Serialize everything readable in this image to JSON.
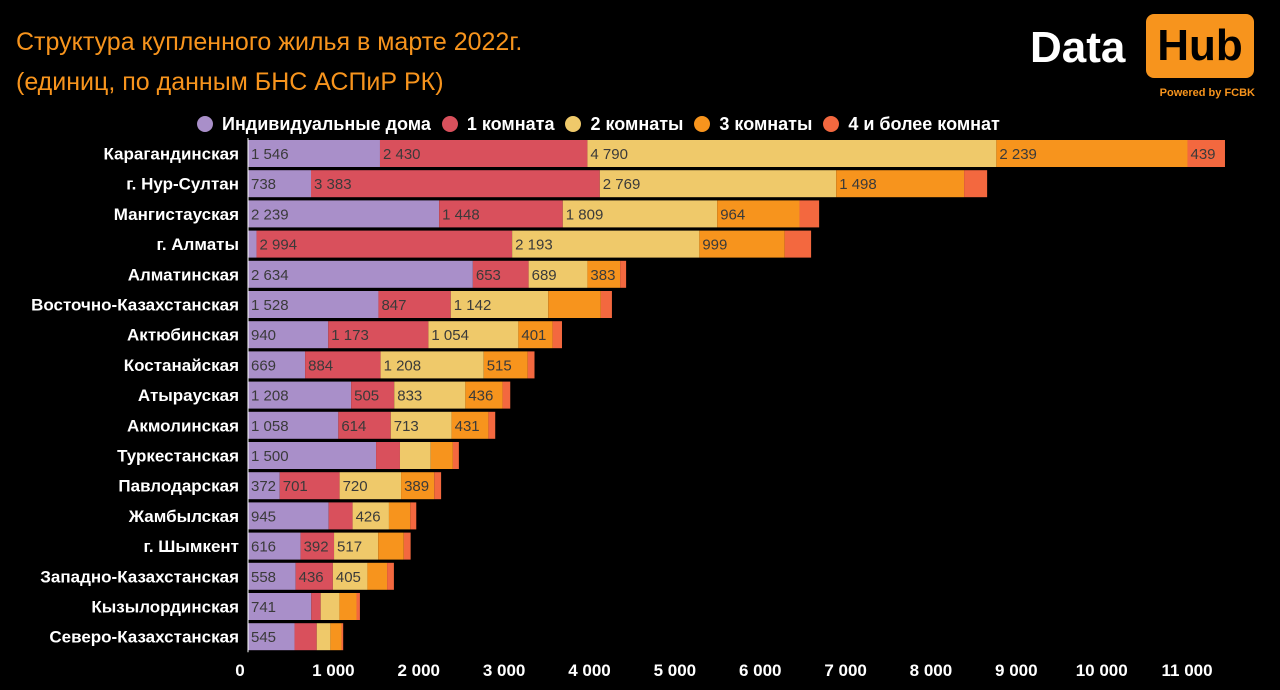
{
  "header": {
    "title_line1": "Структура купленного жилья в марте 2022г.",
    "title_line2": "(единиц, по данным БНС АСПиР РК)"
  },
  "logo": {
    "data_text": "Data",
    "hub_text": "Hub",
    "powered_text": "Powered by FCBK"
  },
  "colors": {
    "background": "#000000",
    "title": "#f7941d",
    "individual": "#a98fc9",
    "one_room": "#d9505c",
    "two_rooms": "#efc96a",
    "three_rooms": "#f7941d",
    "four_plus": "#f3683f"
  },
  "chart_data": {
    "type": "bar",
    "orientation": "horizontal",
    "stacked": true,
    "title": "Структура купленного жилья в марте 2022г.",
    "subtitle": "(единиц, по данным БНС АСПиР РК)",
    "legend_position": "top",
    "grid": false,
    "xlim": [
      0,
      12000
    ],
    "x_ticks": [
      0,
      1000,
      2000,
      3000,
      4000,
      5000,
      6000,
      7000,
      8000,
      9000,
      10000,
      11000
    ],
    "x_tick_labels": [
      "0",
      "1 000",
      "2 000",
      "3 000",
      "4 000",
      "5 000",
      "6 000",
      "7 000",
      "8 000",
      "9 000",
      "10 000",
      "11 000"
    ],
    "categories": [
      "Карагандинская",
      "г. Нур-Султан",
      "Мангистауская",
      "г. Алматы",
      "Алматинская",
      "Восточно-Казахстанская",
      "Актюбинская",
      "Костанайская",
      "Атырауская",
      "Акмолинская",
      "Туркестанская",
      "Павлодарская",
      "Жамбылская",
      "г. Шымкент",
      "Западно-Казахстанская",
      "Кызылординская",
      "Северо-Казахстанская"
    ],
    "series": [
      {
        "name": "Индивидуальные дома",
        "color": "#a98fc9",
        "values": [
          1546,
          738,
          2239,
          100,
          2634,
          1528,
          940,
          669,
          1208,
          1058,
          1500,
          372,
          945,
          616,
          558,
          741,
          545
        ],
        "labels": [
          "1 546",
          "738",
          "2 239",
          "",
          "2 634",
          "1 528",
          "940",
          "669",
          "1 208",
          "1 058",
          "1 500",
          "372",
          "945",
          "616",
          "558",
          "741",
          "545"
        ]
      },
      {
        "name": "1 комната",
        "color": "#d9505c",
        "values": [
          2430,
          3383,
          1448,
          2994,
          653,
          847,
          1173,
          884,
          505,
          614,
          280,
          701,
          280,
          392,
          436,
          110,
          260
        ],
        "labels": [
          "2 430",
          "3 383",
          "1 448",
          "2 994",
          "653",
          "847",
          "1 173",
          "884",
          "505",
          "614",
          "",
          "701",
          "",
          "392",
          "436",
          "",
          ""
        ]
      },
      {
        "name": "2 комнаты",
        "color": "#efc96a",
        "values": [
          4790,
          2769,
          1809,
          2193,
          689,
          1142,
          1054,
          1208,
          833,
          713,
          360,
          720,
          426,
          517,
          405,
          220,
          160
        ],
        "labels": [
          "4 790",
          "2 769",
          "1 809",
          "2 193",
          "689",
          "1 142",
          "1 054",
          "1 208",
          "833",
          "713",
          "",
          "720",
          "426",
          "517",
          "405",
          "",
          ""
        ]
      },
      {
        "name": "3 комнаты",
        "color": "#f7941d",
        "values": [
          2239,
          1498,
          964,
          999,
          383,
          616,
          401,
          515,
          436,
          431,
          260,
          389,
          250,
          300,
          230,
          200,
          130
        ],
        "labels": [
          "2 239",
          "1 498",
          "964",
          "999",
          "383",
          "",
          "401",
          "515",
          "436",
          "431",
          "",
          "389",
          "",
          "",
          "",
          "",
          ""
        ]
      },
      {
        "name": "4 и более комнат",
        "color": "#f3683f",
        "values": [
          439,
          270,
          230,
          310,
          70,
          130,
          110,
          80,
          90,
          80,
          70,
          80,
          70,
          80,
          80,
          40,
          20
        ],
        "labels": [
          "439",
          "",
          "",
          "",
          "",
          "",
          "",
          "",
          "",
          "",
          "",
          "",
          "",
          "",
          "",
          "",
          ""
        ]
      }
    ]
  }
}
